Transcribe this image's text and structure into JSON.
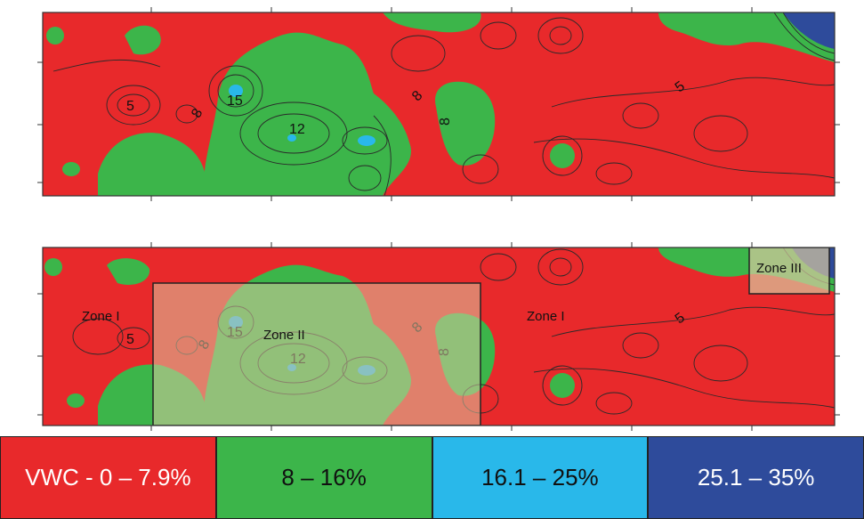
{
  "colors": {
    "dry": "#e8292b",
    "moderate": "#3cb54a",
    "wet": "#29b8ea",
    "very_wet": "#2e4b9b",
    "contour": "#2a2a2a",
    "zone_overlay": "#d9c9a0",
    "border": "#333333"
  },
  "top_map": {
    "contour_labels": [
      {
        "id": "l5a",
        "text": "5"
      },
      {
        "id": "l8a",
        "text": "8"
      },
      {
        "id": "l15",
        "text": "15"
      },
      {
        "id": "l12",
        "text": "12"
      },
      {
        "id": "l8b",
        "text": "8"
      },
      {
        "id": "l8c",
        "text": "8"
      },
      {
        "id": "l5b",
        "text": "5"
      }
    ]
  },
  "bottom_map": {
    "contour_labels": [
      {
        "id": "b5a",
        "text": "5"
      },
      {
        "id": "b8a",
        "text": "8"
      },
      {
        "id": "b15",
        "text": "15"
      },
      {
        "id": "b12",
        "text": "12"
      },
      {
        "id": "b8b",
        "text": "8"
      },
      {
        "id": "b8c",
        "text": "8"
      },
      {
        "id": "b5b",
        "text": "5"
      }
    ],
    "zones": {
      "zone_i_left": "Zone I",
      "zone_ii": "Zone II",
      "zone_i_right": "Zone I",
      "zone_iii": "Zone III"
    }
  },
  "legend": [
    {
      "label": "VWC - 0 – 7.9%",
      "color": "#e8292b",
      "text_color": "#ffffff"
    },
    {
      "label": "8 – 16%",
      "color": "#3cb54a",
      "text_color": "#111111"
    },
    {
      "label": "16.1 – 25%",
      "color": "#29b8ea",
      "text_color": "#111111"
    },
    {
      "label": "25.1 – 35%",
      "color": "#2e4b9b",
      "text_color": "#ffffff"
    }
  ]
}
